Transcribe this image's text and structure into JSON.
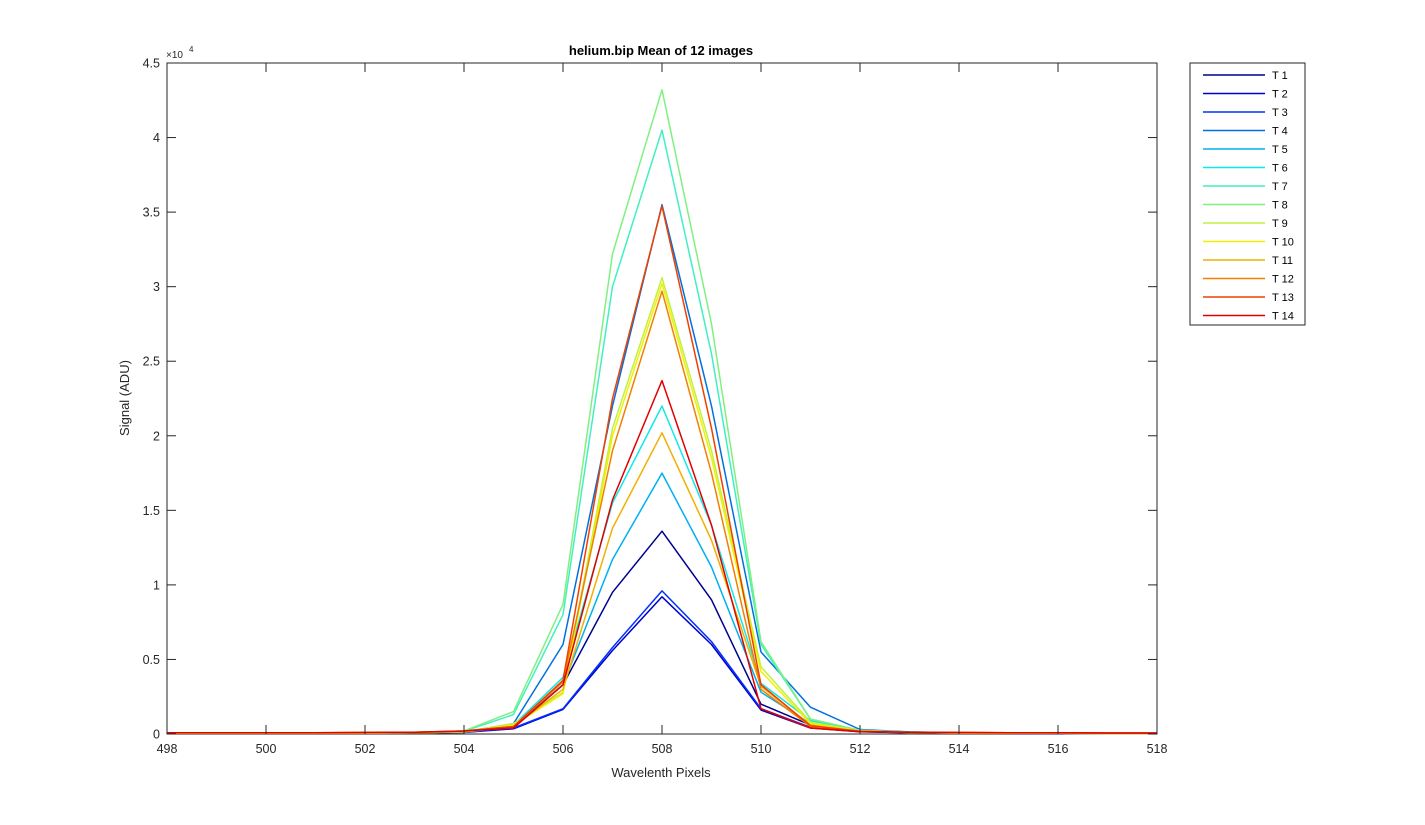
{
  "chart_data": {
    "type": "line",
    "title": "helium.bip  Mean of 12 images",
    "xlabel": "Wavelenth Pixels",
    "ylabel": "Signal (ADU)",
    "y_exponent_base": "×10",
    "y_exponent_power": "4",
    "xlim": [
      498,
      518
    ],
    "ylim": [
      0,
      4.5
    ],
    "y_scale_note": "values in units of 10^4 ADU",
    "xticks": [
      "498",
      "500",
      "502",
      "504",
      "506",
      "508",
      "510",
      "512",
      "514",
      "516",
      "518"
    ],
    "yticks": [
      "0",
      "0.5",
      "1",
      "1.5",
      "2",
      "2.5",
      "3",
      "3.5",
      "4",
      "4.5"
    ],
    "grid": false,
    "legend_position": "outside-top-right",
    "x": [
      498,
      499,
      500,
      501,
      502,
      503,
      504,
      505,
      506,
      507,
      508,
      509,
      510,
      511,
      512,
      513,
      514,
      515,
      516,
      517,
      518
    ],
    "series": [
      {
        "name": "T 1",
        "color": "#00008F",
        "values": [
          0.005,
          0.005,
          0.005,
          0.005,
          0.006,
          0.008,
          0.012,
          0.045,
          0.33,
          0.95,
          1.36,
          0.9,
          0.2,
          0.06,
          0.025,
          0.012,
          0.007,
          0.005,
          0.004,
          0.004,
          0.003
        ]
      },
      {
        "name": "T 2",
        "color": "#0000CC",
        "values": [
          0.005,
          0.005,
          0.005,
          0.005,
          0.006,
          0.008,
          0.011,
          0.035,
          0.165,
          0.56,
          0.92,
          0.6,
          0.16,
          0.04,
          0.015,
          0.009,
          0.006,
          0.005,
          0.004,
          0.004,
          0.003
        ]
      },
      {
        "name": "T 3",
        "color": "#0030FF",
        "values": [
          0.005,
          0.005,
          0.005,
          0.005,
          0.006,
          0.008,
          0.011,
          0.04,
          0.17,
          0.58,
          0.96,
          0.62,
          0.17,
          0.045,
          0.016,
          0.01,
          0.006,
          0.005,
          0.004,
          0.004,
          0.003
        ]
      },
      {
        "name": "T 4",
        "color": "#0070E0",
        "values": [
          0.006,
          0.006,
          0.006,
          0.006,
          0.007,
          0.009,
          0.014,
          0.07,
          0.6,
          2.2,
          3.55,
          2.2,
          0.55,
          0.18,
          0.03,
          0.014,
          0.008,
          0.006,
          0.005,
          0.004,
          0.004
        ]
      },
      {
        "name": "T 5",
        "color": "#00B0F0",
        "values": [
          0.006,
          0.006,
          0.006,
          0.006,
          0.007,
          0.009,
          0.013,
          0.05,
          0.33,
          1.17,
          1.75,
          1.12,
          0.28,
          0.07,
          0.02,
          0.01,
          0.007,
          0.006,
          0.005,
          0.004,
          0.004
        ]
      },
      {
        "name": "T 6",
        "color": "#10E8E8",
        "values": [
          0.006,
          0.006,
          0.006,
          0.006,
          0.007,
          0.009,
          0.014,
          0.06,
          0.38,
          1.55,
          2.2,
          1.4,
          0.34,
          0.09,
          0.025,
          0.012,
          0.008,
          0.006,
          0.005,
          0.004,
          0.004
        ]
      },
      {
        "name": "T 7",
        "color": "#40F0C0",
        "values": [
          0.006,
          0.006,
          0.006,
          0.006,
          0.007,
          0.01,
          0.018,
          0.13,
          0.8,
          3.0,
          4.05,
          2.55,
          0.6,
          0.1,
          0.025,
          0.012,
          0.008,
          0.006,
          0.005,
          0.004,
          0.004
        ]
      },
      {
        "name": "T 8",
        "color": "#80F080",
        "values": [
          0.006,
          0.006,
          0.006,
          0.006,
          0.007,
          0.01,
          0.02,
          0.15,
          0.87,
          3.22,
          4.32,
          2.75,
          0.62,
          0.1,
          0.025,
          0.012,
          0.008,
          0.006,
          0.005,
          0.004,
          0.004
        ]
      },
      {
        "name": "T 9",
        "color": "#C0F040",
        "values": [
          0.006,
          0.006,
          0.006,
          0.006,
          0.007,
          0.009,
          0.015,
          0.07,
          0.28,
          2.05,
          3.06,
          1.9,
          0.45,
          0.08,
          0.02,
          0.01,
          0.007,
          0.006,
          0.005,
          0.004,
          0.004
        ]
      },
      {
        "name": "T 10",
        "color": "#F0F000",
        "values": [
          0.006,
          0.006,
          0.006,
          0.006,
          0.007,
          0.009,
          0.015,
          0.06,
          0.27,
          2.0,
          3.02,
          1.85,
          0.42,
          0.07,
          0.02,
          0.01,
          0.007,
          0.006,
          0.005,
          0.004,
          0.004
        ]
      },
      {
        "name": "T 11",
        "color": "#F0B000",
        "values": [
          0.006,
          0.006,
          0.006,
          0.006,
          0.007,
          0.009,
          0.014,
          0.05,
          0.3,
          1.38,
          2.02,
          1.3,
          0.32,
          0.06,
          0.018,
          0.01,
          0.007,
          0.006,
          0.005,
          0.004,
          0.004
        ]
      },
      {
        "name": "T 12",
        "color": "#F08000",
        "values": [
          0.008,
          0.008,
          0.008,
          0.008,
          0.01,
          0.012,
          0.02,
          0.05,
          0.35,
          1.9,
          2.97,
          1.75,
          0.3,
          0.05,
          0.018,
          0.012,
          0.01,
          0.008,
          0.008,
          0.007,
          0.007
        ]
      },
      {
        "name": "T 13",
        "color": "#F04000",
        "values": [
          0.008,
          0.008,
          0.008,
          0.008,
          0.01,
          0.012,
          0.02,
          0.05,
          0.36,
          2.25,
          3.54,
          2.05,
          0.33,
          0.055,
          0.018,
          0.012,
          0.01,
          0.008,
          0.008,
          0.007,
          0.007
        ]
      },
      {
        "name": "T 14",
        "color": "#E00000",
        "values": [
          0.008,
          0.008,
          0.008,
          0.008,
          0.01,
          0.012,
          0.02,
          0.04,
          0.33,
          1.57,
          2.37,
          1.4,
          0.17,
          0.04,
          0.015,
          0.012,
          0.01,
          0.008,
          0.008,
          0.007,
          0.007
        ]
      }
    ]
  }
}
